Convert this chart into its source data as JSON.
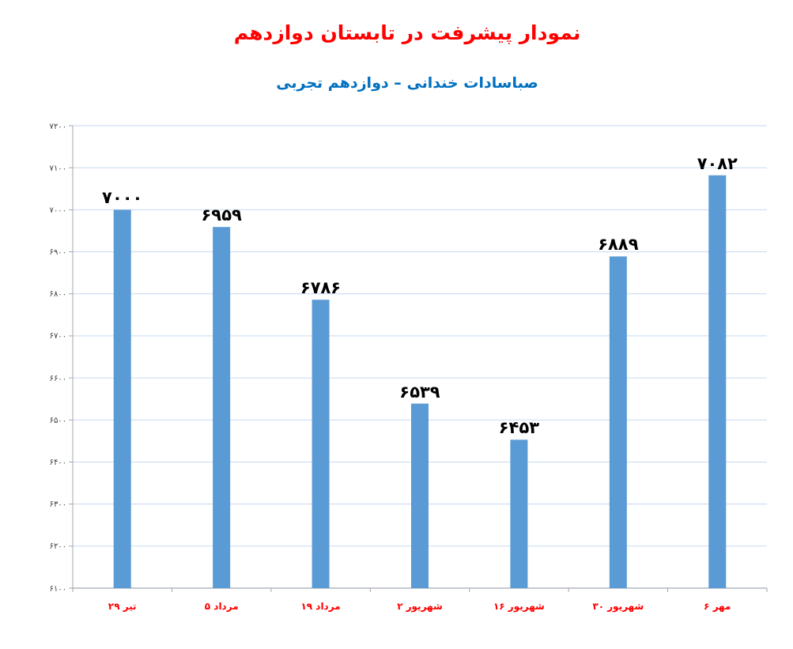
{
  "chart_data": {
    "type": "bar",
    "title": "نمودار پیشرفت در تابستان دوازدهم",
    "subtitle": "صباسادات خندانی – دوازدهم تجربی",
    "categories": [
      "۲۹ تیر",
      "۵ مرداد",
      "۱۹ مرداد",
      "۲ شهریور",
      "۱۶ شهریور",
      "۳۰ شهریور",
      "۶ مهر"
    ],
    "values": [
      7000,
      6959,
      6786,
      6539,
      6453,
      6889,
      7082
    ],
    "value_labels": [
      "۷۰۰۰",
      "۶۹۵۹",
      "۶۷۸۶",
      "۶۵۳۹",
      "۶۴۵۳",
      "۶۸۸۹",
      "۷۰۸۲"
    ],
    "color": "#5b9bd5",
    "ylim": [
      6100,
      7200
    ],
    "yticks": [
      {
        "value": 6100,
        "label": "۶۱۰۰"
      },
      {
        "value": 6200,
        "label": "۶۲۰۰"
      },
      {
        "value": 6300,
        "label": "۶۳۰۰"
      },
      {
        "value": 6400,
        "label": "۶۴۰۰"
      },
      {
        "value": 6500,
        "label": "۶۵۰۰"
      },
      {
        "value": 6600,
        "label": "۶۶۰۰"
      },
      {
        "value": 6700,
        "label": "۶۷۰۰"
      },
      {
        "value": 6800,
        "label": "۶۸۰۰"
      },
      {
        "value": 6900,
        "label": "۶۹۰۰"
      },
      {
        "value": 7000,
        "label": "۷۰۰۰"
      },
      {
        "value": 7100,
        "label": "۷۱۰۰"
      },
      {
        "value": 7200,
        "label": "۷۲۰۰"
      }
    ],
    "grid": "y"
  }
}
